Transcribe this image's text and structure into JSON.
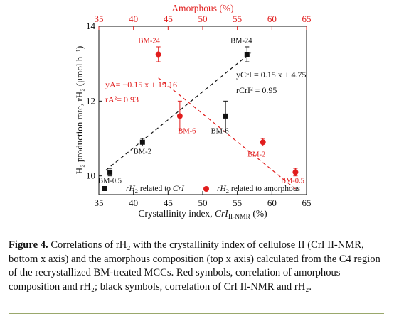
{
  "figure": {
    "top_axis_title": "Amorphous (%)",
    "bottom_axis_title_main": "Crystallinity index, ",
    "bottom_axis_title_sym": "CrI",
    "bottom_axis_title_sub": "II-NMR",
    "bottom_axis_title_unit": " (%)",
    "y_axis_title": "H₂ production rate, rH₂ (μmol h⁻¹)",
    "legend": {
      "black": {
        "prefix": "rH",
        "sub": "2",
        "mid": " related to ",
        "sym": "CrI",
        "color": "#111111"
      },
      "red": {
        "prefix": "rH",
        "sub": "2",
        "mid": " related to amorphous",
        "sym": "",
        "color": "#e11d1d"
      }
    }
  },
  "chart_data": {
    "type": "scatter",
    "xlabel_bottom": "Crystallinity index, CrI II-NMR (%)",
    "xlabel_top": "Amorphous (%)",
    "ylabel": "H2 production rate, rH2 (μmol h−1)",
    "xlim_bottom": [
      35,
      65
    ],
    "xlim_top": [
      35,
      65
    ],
    "ylim": [
      9.5,
      14
    ],
    "x_ticks": [
      35,
      40,
      45,
      50,
      55,
      60,
      65
    ],
    "y_ticks": [
      10,
      12,
      14
    ],
    "series": [
      {
        "name": "rH2 related to CrI",
        "axis": "bottom",
        "color": "#111111",
        "marker": "square",
        "points": [
          {
            "label": "BM-0.5",
            "x": 36.6,
            "y": 10.1,
            "err": 0.1
          },
          {
            "label": "BM-2",
            "x": 41.3,
            "y": 10.9,
            "err": 0.1
          },
          {
            "label": "BM-6",
            "x": 53.3,
            "y": 11.6,
            "err": 0.4
          },
          {
            "label": "BM-24",
            "x": 56.4,
            "y": 13.25,
            "err": 0.2
          }
        ],
        "fit": {
          "equation": "yCrI = 0.15 x + 4.75",
          "r2": "rCrI² = 0.95",
          "slope": 0.15,
          "intercept": 4.75
        }
      },
      {
        "name": "rH2 related to amorphous",
        "axis": "top",
        "color": "#e11d1d",
        "marker": "circle",
        "points": [
          {
            "label": "BM-24",
            "x": 43.6,
            "y": 13.25,
            "err": 0.2
          },
          {
            "label": "BM-6",
            "x": 46.7,
            "y": 11.6,
            "err": 0.4
          },
          {
            "label": "BM-2",
            "x": 58.7,
            "y": 10.9,
            "err": 0.1
          },
          {
            "label": "BM-0.5",
            "x": 63.4,
            "y": 10.1,
            "err": 0.1
          }
        ],
        "fit": {
          "equation": "yA= −0.15 x + 19.16",
          "r2": "rA²= 0.93",
          "slope": -0.15,
          "intercept": 19.16
        }
      }
    ]
  },
  "caption": {
    "label": "Figure 4.",
    "text": " Correlations of rH₂ with the crystallinity index of cellulose II (CrI II-NMR, bottom x axis) and the amorphous composition (top x axis) calculated from the C4 region of the recrystallized BM-treated MCCs. Red symbols, correlation of amorphous composition and rH₂; black symbols, correlation of CrI II-NMR and rH₂."
  }
}
